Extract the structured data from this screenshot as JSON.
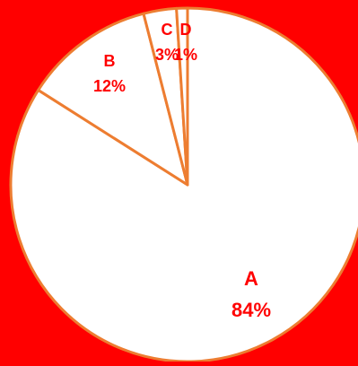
{
  "chart_data": {
    "type": "pie",
    "title": "",
    "slices": [
      {
        "category": "A",
        "label": "84%",
        "value": 84
      },
      {
        "category": "B",
        "label": "12%",
        "value": 12
      },
      {
        "category": "C",
        "label": "3%",
        "value": 3
      },
      {
        "category": "D",
        "label": "1%",
        "value": 1
      }
    ],
    "start_angle_deg": 0,
    "direction": "clockwise",
    "colors": {
      "background": "#ff0000",
      "slice_fill": "#ffffff",
      "slice_stroke": "#ed7d31",
      "label_text": "#ff0000"
    }
  }
}
